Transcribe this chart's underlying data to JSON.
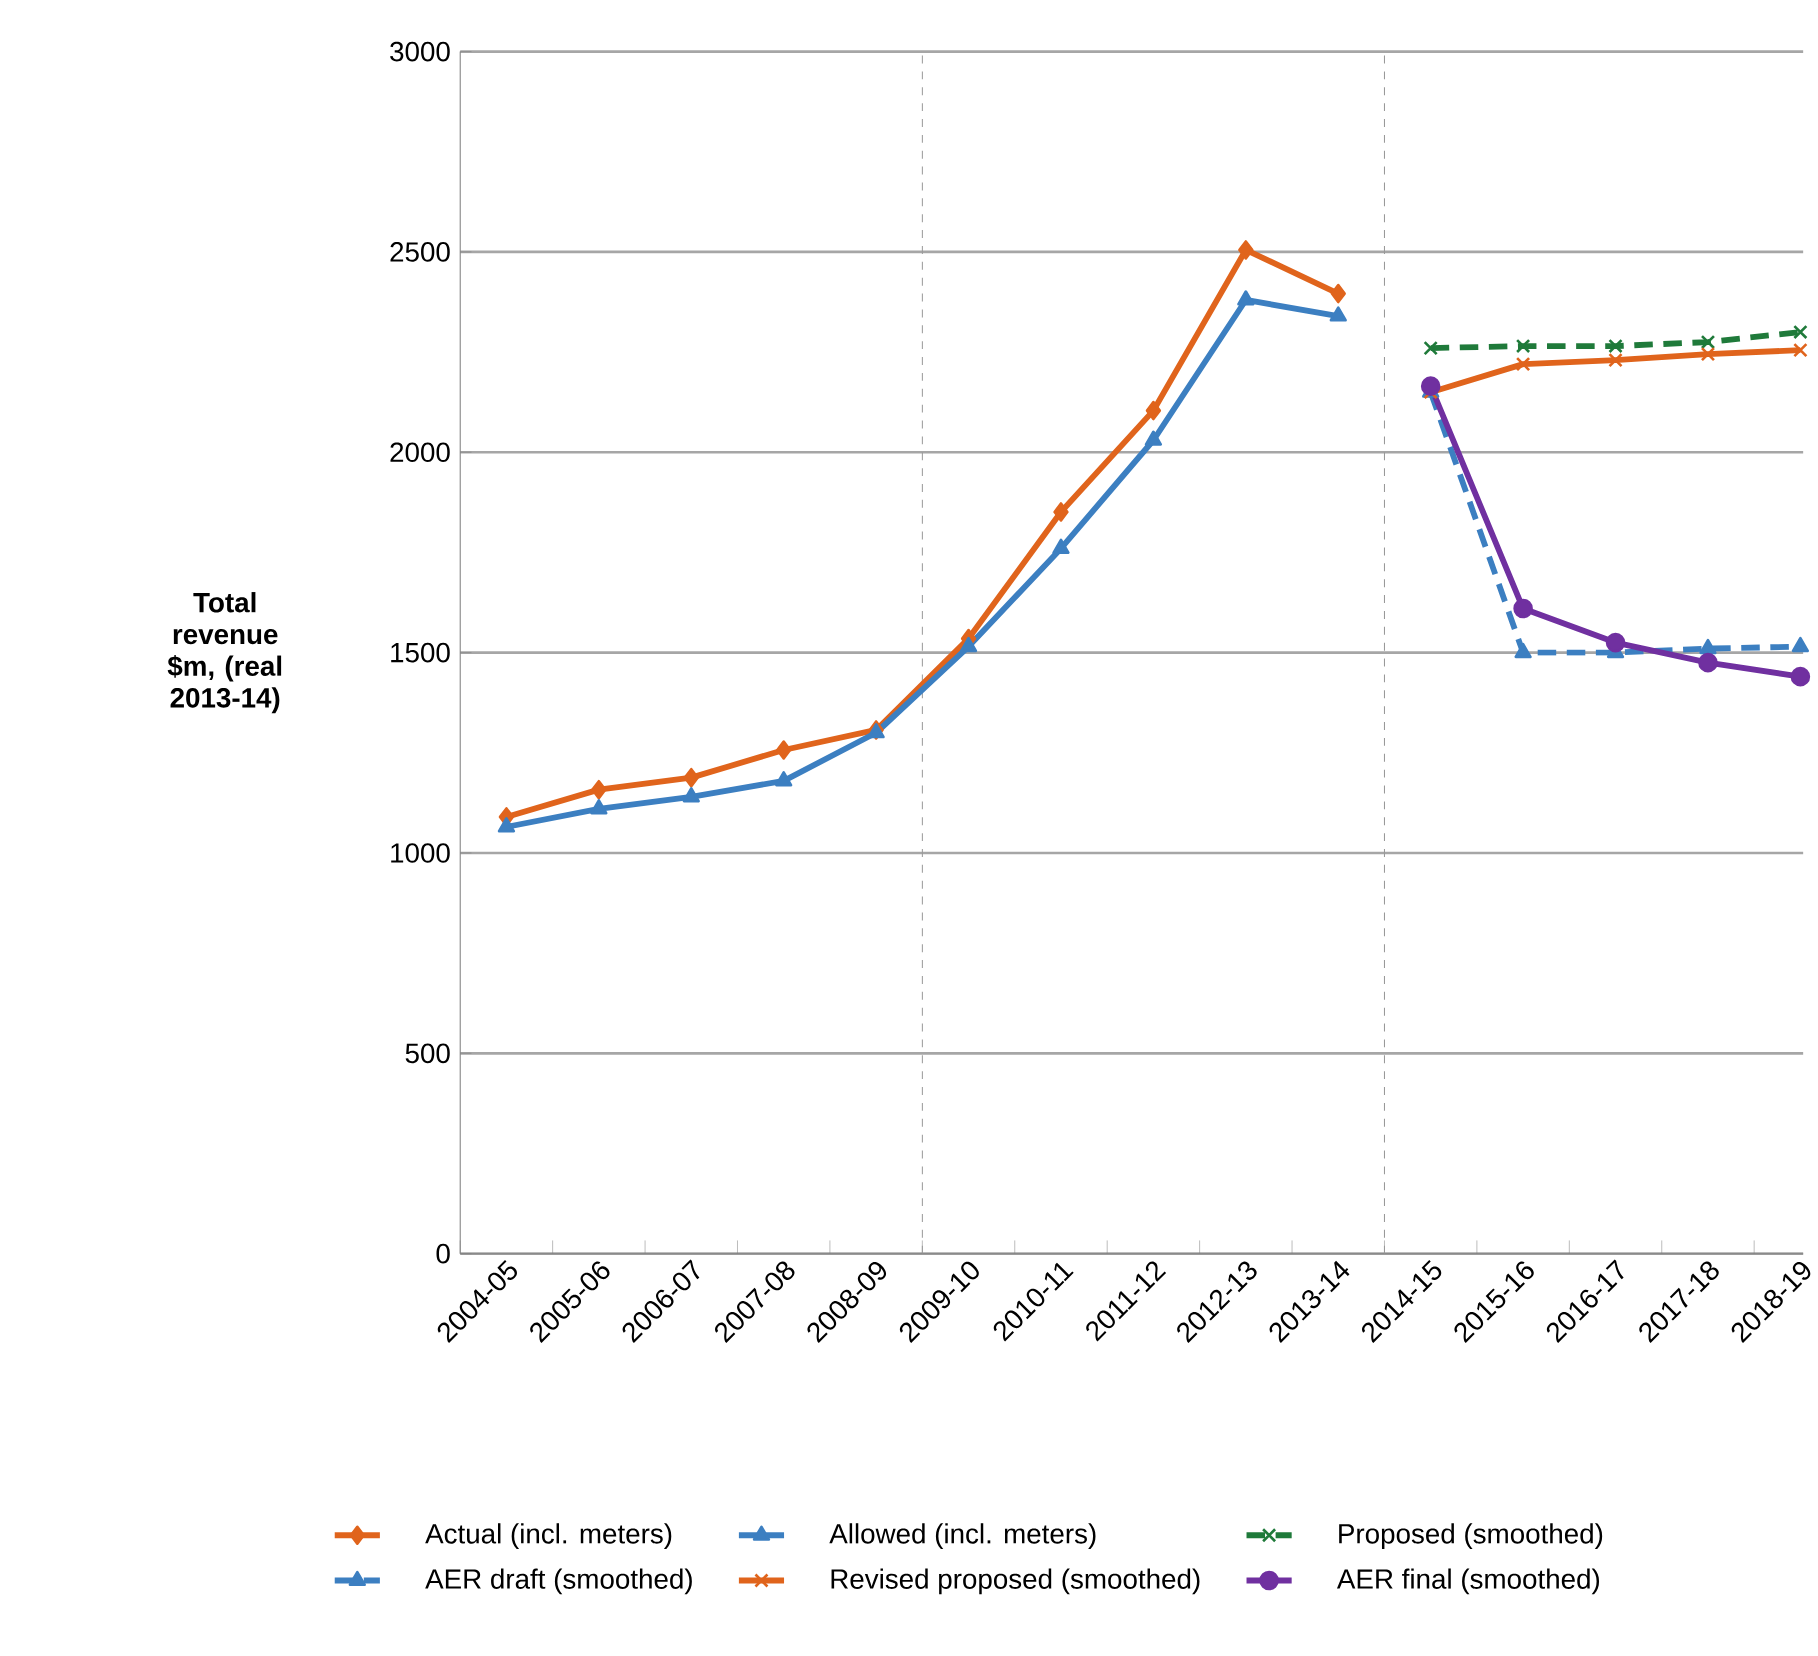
{
  "chart_data": {
    "type": "line",
    "ylabel": "Total revenue $m, (real 2013-14)",
    "categories": [
      "2004-05",
      "2005-06",
      "2006-07",
      "2007-08",
      "2008-09",
      "2009-10",
      "2010-11",
      "2011-12",
      "2012-13",
      "2013-14",
      "2014-15",
      "2015-16",
      "2016-17",
      "2017-18",
      "2018-19"
    ],
    "ylim": [
      0,
      3000
    ],
    "yticks": [
      0,
      500,
      1000,
      1500,
      2000,
      2500,
      3000
    ],
    "grid": "y",
    "legend": "bottom",
    "series": [
      {
        "name": "Actual (incl. meters)",
        "color": "#e0641c",
        "marker": "diamond",
        "line_style": "solid",
        "values": [
          1090,
          1158,
          1188,
          1257,
          1307,
          1535,
          1851,
          2104,
          2505,
          2396,
          null,
          null,
          null,
          null,
          null
        ]
      },
      {
        "name": "Allowed (incl. meters)",
        "color": "#3c7fc1",
        "marker": "triangle",
        "line_style": "solid",
        "values": [
          1065,
          1110,
          1140,
          1180,
          1300,
          1515,
          1760,
          2030,
          2380,
          2340,
          null,
          null,
          null,
          null,
          null
        ]
      },
      {
        "name": "Proposed (smoothed)",
        "color": "#1f7a3a",
        "marker": "cross",
        "line_style": "dashed",
        "values": [
          null,
          null,
          null,
          null,
          null,
          null,
          null,
          null,
          null,
          null,
          2260,
          2265,
          2265,
          2275,
          2300
        ]
      },
      {
        "name": "AER draft (smoothed)",
        "color": "#3c7fc1",
        "marker": "triangle",
        "line_style": "dashed",
        "values": [
          null,
          null,
          null,
          null,
          null,
          null,
          null,
          null,
          null,
          null,
          2150,
          1500,
          1500,
          1510,
          1515
        ]
      },
      {
        "name": "Revised proposed (smoothed)",
        "color": "#e0641c",
        "marker": "cross",
        "line_style": "solid",
        "values": [
          null,
          null,
          null,
          null,
          null,
          null,
          null,
          null,
          null,
          null,
          2150,
          2220,
          2230,
          2245,
          2255
        ]
      },
      {
        "name": "AER final (smoothed)",
        "color": "#7030a0",
        "marker": "circle",
        "line_style": "solid",
        "values": [
          null,
          null,
          null,
          null,
          null,
          null,
          null,
          null,
          null,
          null,
          2165,
          1610,
          1525,
          1475,
          1440
        ]
      }
    ]
  }
}
